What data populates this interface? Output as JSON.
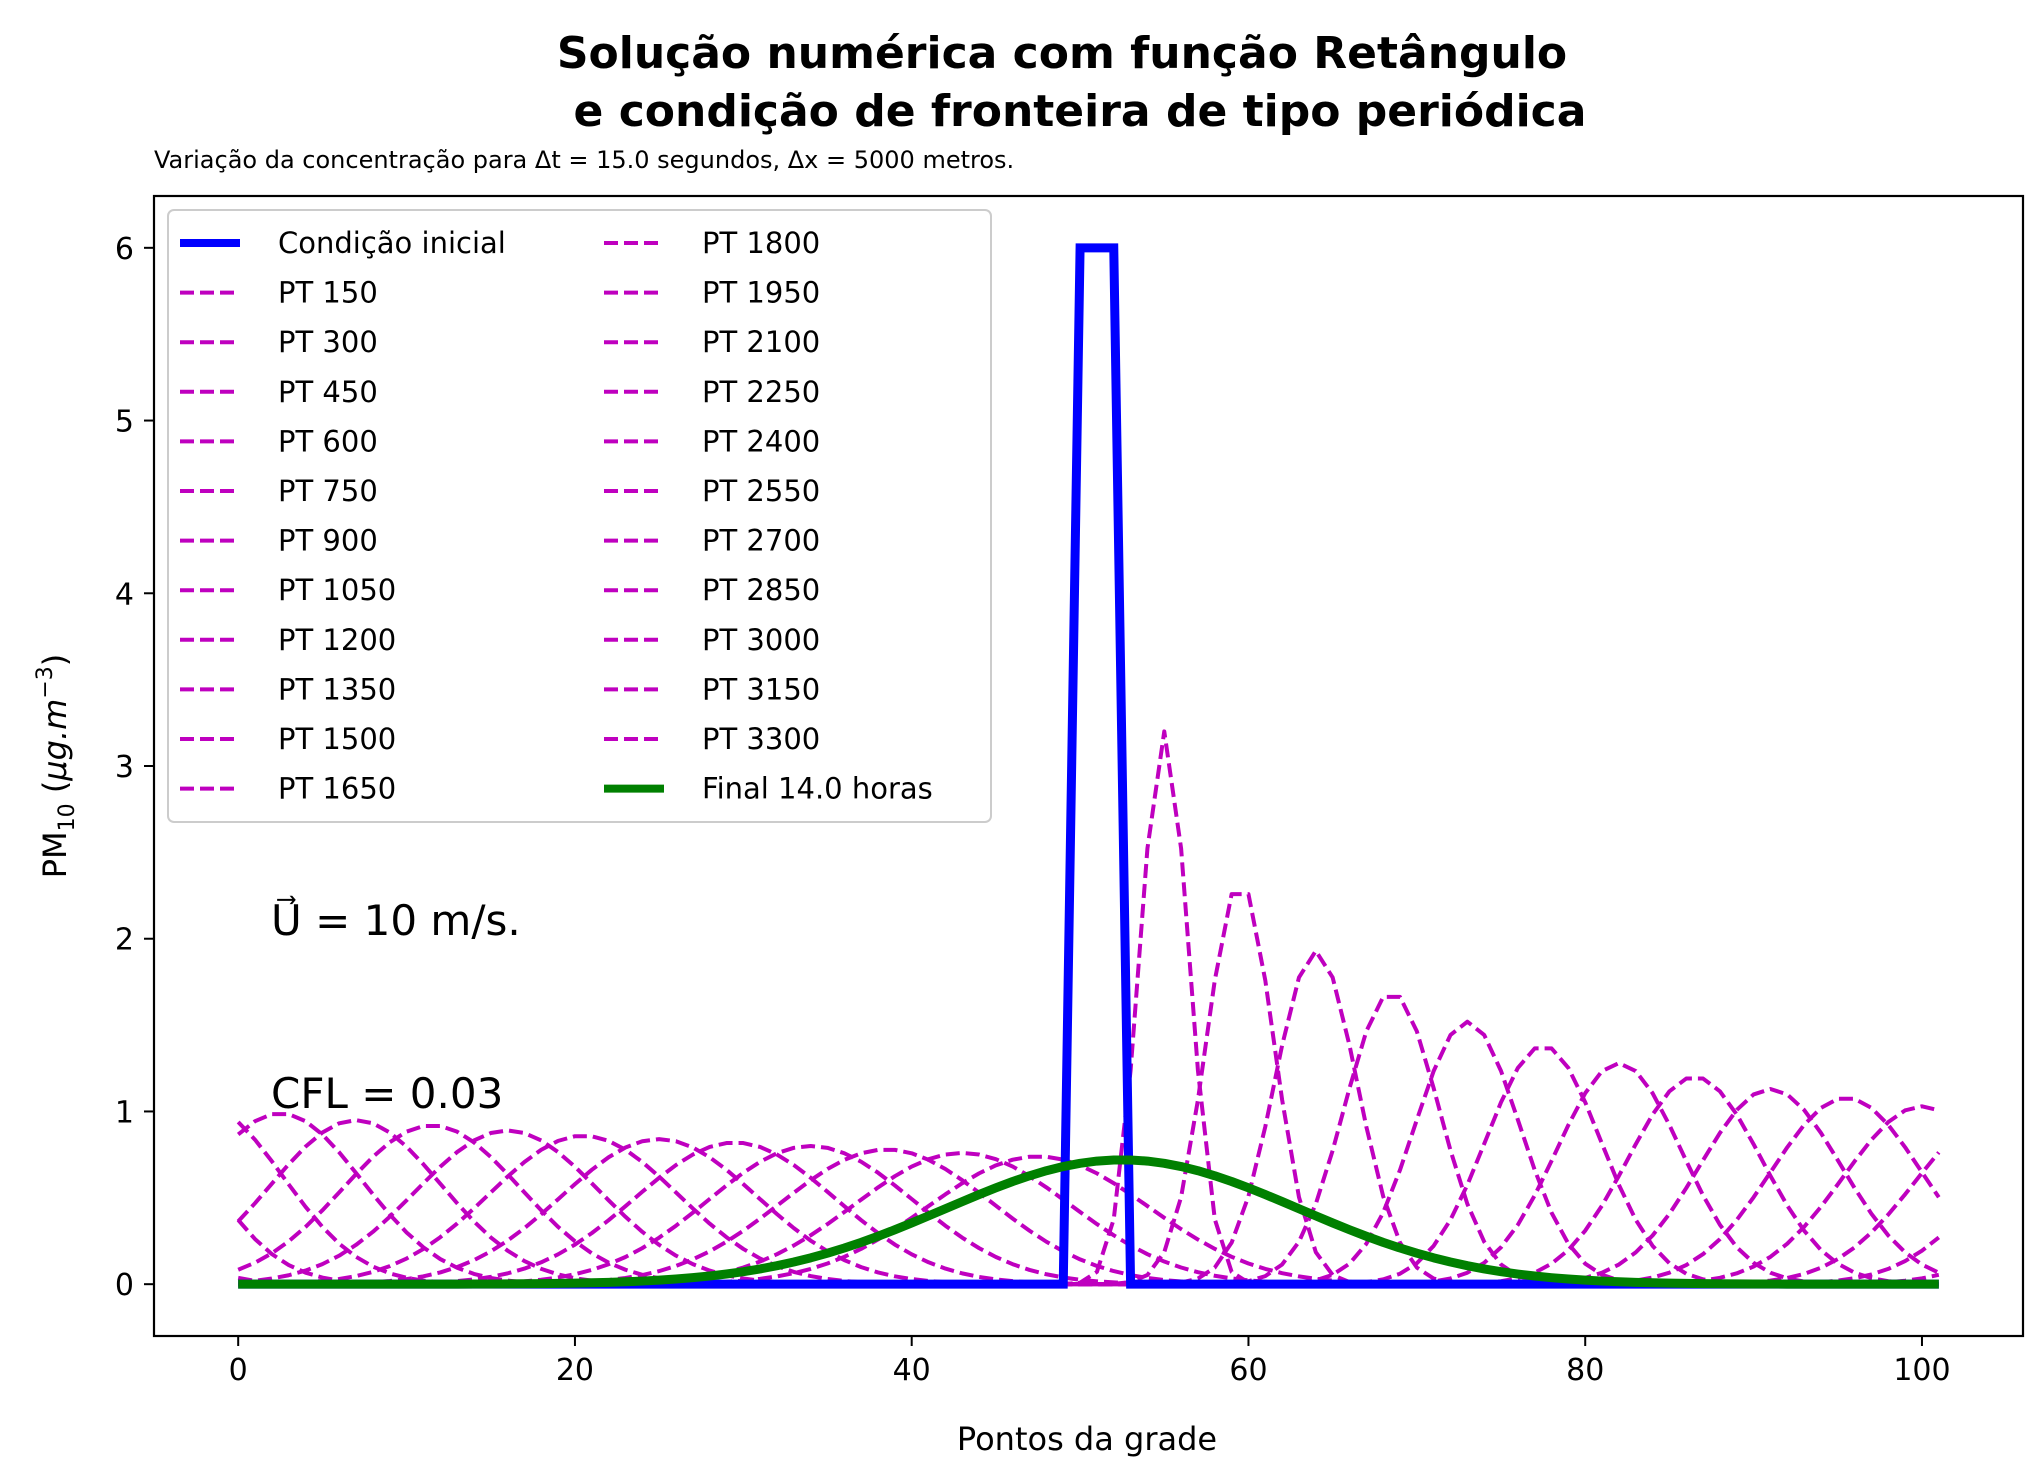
{
  "chart_data": {
    "type": "line",
    "title_line1": "Solução numérica com função Retângulo",
    "title_line2": "e condição de fronteira de tipo periódica",
    "subtitle": "Variação da concentração para Δt = 15.0 segundos, Δx = 5000 metros.",
    "xlabel": "Pontos da grade",
    "ylabel_main": "PM",
    "ylabel_sub": "10",
    "ylabel_unit_prefix": " (",
    "ylabel_unit": "μg.m",
    "ylabel_exp": "−3",
    "ylabel_close": ")",
    "xlim": [
      -5,
      106
    ],
    "ylim": [
      -0.3,
      6.3
    ],
    "xticks": [
      0,
      20,
      40,
      60,
      80,
      100
    ],
    "yticks": [
      0,
      1,
      2,
      3,
      4,
      5,
      6
    ],
    "grid": false,
    "legend_position": "upper-left",
    "legend_columns": 2,
    "n_points": 102,
    "annotations": [
      {
        "text": "U⃗ = 10 m/s.",
        "x": 2,
        "y": 2.0
      },
      {
        "text": "CFL = 0.03",
        "x": 2,
        "y": 1.05
      }
    ],
    "initial_condition": {
      "name": "Condição inicial",
      "color": "#0000ff",
      "points": [
        [
          0,
          0
        ],
        [
          49,
          0
        ],
        [
          50,
          6
        ],
        [
          52,
          6
        ],
        [
          53,
          0
        ],
        [
          101,
          0
        ]
      ]
    },
    "final": {
      "name": "Final 14.0 horas",
      "color": "#008000",
      "center": 52.5,
      "amplitude": 0.72,
      "sigma": 10.5
    },
    "pt_color": "#bf00bf",
    "series": [
      {
        "name": "PT 150",
        "center": 55.0,
        "amplitude": 3.2,
        "sigma": 1.45
      },
      {
        "name": "PT 300",
        "center": 59.5,
        "amplitude": 2.33,
        "sigma": 2.0
      },
      {
        "name": "PT 450",
        "center": 64.0,
        "amplitude": 1.93,
        "sigma": 2.45
      },
      {
        "name": "PT 600",
        "center": 68.5,
        "amplitude": 1.69,
        "sigma": 2.8
      },
      {
        "name": "PT 750",
        "center": 73.0,
        "amplitude": 1.52,
        "sigma": 3.1
      },
      {
        "name": "PT 900",
        "center": 77.5,
        "amplitude": 1.38,
        "sigma": 3.4
      },
      {
        "name": "PT 1050",
        "center": 82.0,
        "amplitude": 1.28,
        "sigma": 3.7
      },
      {
        "name": "PT 1200",
        "center": 86.5,
        "amplitude": 1.2,
        "sigma": 3.95
      },
      {
        "name": "PT 1350",
        "center": 91.0,
        "amplitude": 1.13,
        "sigma": 4.2
      },
      {
        "name": "PT 1500",
        "center": 95.5,
        "amplitude": 1.08,
        "sigma": 4.45
      },
      {
        "name": "PT 1650",
        "center": 100.0,
        "amplitude": 1.03,
        "sigma": 4.65
      },
      {
        "name": "PT 1800",
        "center": 2.5,
        "amplitude": 0.99,
        "sigma": 4.85
      },
      {
        "name": "PT 1950",
        "center": 7.0,
        "amplitude": 0.95,
        "sigma": 5.05
      },
      {
        "name": "PT 2100",
        "center": 11.5,
        "amplitude": 0.92,
        "sigma": 5.25
      },
      {
        "name": "PT 2250",
        "center": 16.0,
        "amplitude": 0.89,
        "sigma": 5.45
      },
      {
        "name": "PT 2400",
        "center": 20.5,
        "amplitude": 0.86,
        "sigma": 5.6
      },
      {
        "name": "PT 2550",
        "center": 25.0,
        "amplitude": 0.84,
        "sigma": 5.8
      },
      {
        "name": "PT 2700",
        "center": 29.5,
        "amplitude": 0.82,
        "sigma": 5.95
      },
      {
        "name": "PT 2850",
        "center": 34.0,
        "amplitude": 0.8,
        "sigma": 6.1
      },
      {
        "name": "PT 3000",
        "center": 38.5,
        "amplitude": 0.78,
        "sigma": 6.25
      },
      {
        "name": "PT 3150",
        "center": 43.0,
        "amplitude": 0.76,
        "sigma": 6.4
      },
      {
        "name": "PT 3300",
        "center": 47.5,
        "amplitude": 0.74,
        "sigma": 6.55
      }
    ]
  }
}
